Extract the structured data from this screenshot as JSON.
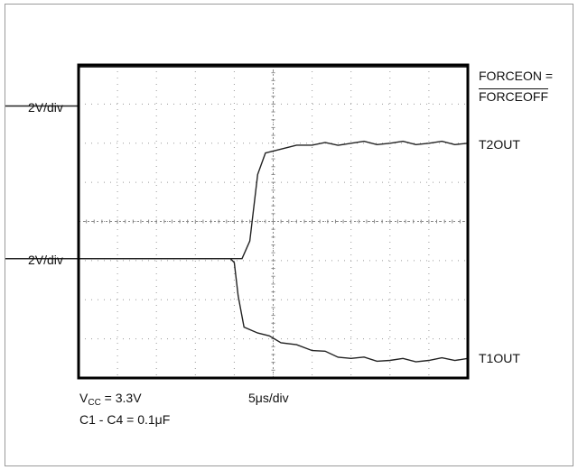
{
  "chart_data": {
    "type": "line",
    "title": "",
    "xlabel": "5μs/div",
    "ylabel": "",
    "scale_labels": [
      "2V/div",
      "2V/div"
    ],
    "grid": true,
    "xlim": [
      0,
      10
    ],
    "ylim": [
      0,
      8
    ],
    "divisions": {
      "x": 10,
      "y": 8
    },
    "series": [
      {
        "name": "FORCEON =",
        "name_line2": "FORCEOFF",
        "color": "#222222",
        "points": [
          [
            -1.0,
            6.95
          ],
          [
            0.0,
            6.95
          ],
          [
            0.02,
            7.95
          ],
          [
            10.0,
            7.95
          ]
        ]
      },
      {
        "name": "T2OUT",
        "color": "#222222",
        "points": [
          [
            -1.0,
            3.05
          ],
          [
            4.0,
            3.05
          ],
          [
            4.2,
            3.05
          ],
          [
            4.4,
            3.5
          ],
          [
            4.6,
            5.2
          ],
          [
            4.8,
            5.75
          ],
          [
            5.2,
            5.85
          ],
          [
            6.0,
            5.95
          ],
          [
            7.0,
            6.0
          ],
          [
            8.0,
            6.0
          ],
          [
            9.0,
            6.0
          ],
          [
            10.0,
            6.0
          ]
        ]
      },
      {
        "name": "T1OUT",
        "color": "#222222",
        "points": [
          [
            -1.0,
            3.05
          ],
          [
            3.9,
            3.05
          ],
          [
            4.0,
            2.95
          ],
          [
            4.1,
            2.1
          ],
          [
            4.25,
            1.3
          ],
          [
            4.6,
            1.15
          ],
          [
            5.2,
            0.9
          ],
          [
            6.0,
            0.7
          ],
          [
            7.0,
            0.5
          ],
          [
            8.0,
            0.45
          ],
          [
            9.0,
            0.45
          ],
          [
            10.0,
            0.5
          ]
        ]
      }
    ]
  },
  "annotations": {
    "vcc_prefix": "V",
    "vcc_subscript": "CC",
    "vcc_value": " = 3.3V",
    "capacitors": "C1 - C4 = 0.1μF"
  }
}
